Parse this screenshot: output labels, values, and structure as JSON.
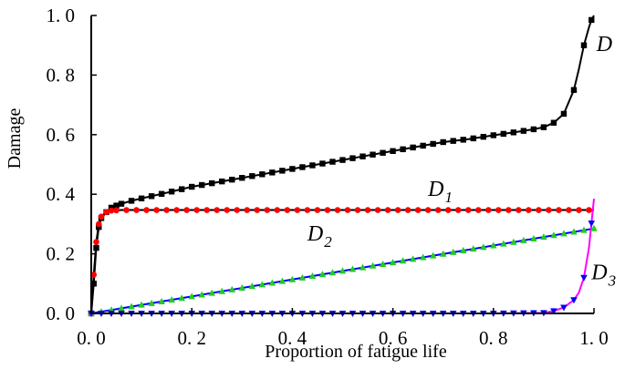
{
  "chart_data": {
    "type": "line",
    "title": "",
    "xlabel": "Proportion of  fatigue life",
    "ylabel": "Damage",
    "xlim": [
      0.0,
      1.0
    ],
    "ylim": [
      0.0,
      1.0
    ],
    "grid": false,
    "legend": "none",
    "x_ticks": [
      {
        "value": 0.0,
        "label": "0. 0"
      },
      {
        "value": 0.2,
        "label": "0. 2"
      },
      {
        "value": 0.4,
        "label": "0. 4"
      },
      {
        "value": 0.6,
        "label": "0. 6"
      },
      {
        "value": 0.8,
        "label": "0. 8"
      },
      {
        "value": 1.0,
        "label": "1. 0"
      }
    ],
    "y_ticks": [
      {
        "value": 0.0,
        "label": "0. 0"
      },
      {
        "value": 0.2,
        "label": "0. 2"
      },
      {
        "value": 0.4,
        "label": "0. 4"
      },
      {
        "value": 0.6,
        "label": "0. 6"
      },
      {
        "value": 0.8,
        "label": "0. 8"
      },
      {
        "value": 1.0,
        "label": "1. 0"
      }
    ],
    "series": [
      {
        "name": "D",
        "label_main": "D",
        "label_sub": "",
        "label_at": [
          1.005,
          0.88
        ],
        "line_color": "#000000",
        "marker_color": "#000000",
        "marker": "square",
        "x": [
          0.0,
          0.005,
          0.01,
          0.015,
          0.02,
          0.03,
          0.04,
          0.05,
          0.06,
          0.08,
          0.1,
          0.15,
          0.2,
          0.25,
          0.3,
          0.35,
          0.4,
          0.45,
          0.5,
          0.55,
          0.6,
          0.65,
          0.7,
          0.75,
          0.8,
          0.85,
          0.88,
          0.9,
          0.92,
          0.94,
          0.96,
          0.97,
          0.98,
          0.99,
          0.995,
          1.0
        ],
        "y": [
          0.0,
          0.1,
          0.22,
          0.29,
          0.32,
          0.34,
          0.355,
          0.362,
          0.368,
          0.378,
          0.386,
          0.405,
          0.425,
          0.44,
          0.455,
          0.47,
          0.485,
          0.5,
          0.515,
          0.53,
          0.545,
          0.56,
          0.575,
          0.585,
          0.598,
          0.61,
          0.618,
          0.625,
          0.64,
          0.67,
          0.75,
          0.82,
          0.9,
          0.96,
          0.985,
          1.0
        ]
      },
      {
        "name": "D1",
        "label_main": "D",
        "label_sub": "1",
        "label_at": [
          0.67,
          0.395
        ],
        "line_color": "#000000",
        "marker_color": "#ff0000",
        "marker": "circle",
        "x": [
          0.0,
          0.005,
          0.01,
          0.015,
          0.02,
          0.03,
          0.04,
          0.05,
          0.06,
          0.08,
          0.1,
          0.2,
          0.3,
          0.4,
          0.5,
          0.6,
          0.7,
          0.8,
          0.9,
          1.0
        ],
        "y": [
          0.0,
          0.13,
          0.24,
          0.3,
          0.325,
          0.34,
          0.345,
          0.346,
          0.347,
          0.347,
          0.347,
          0.347,
          0.347,
          0.347,
          0.347,
          0.347,
          0.347,
          0.347,
          0.347,
          0.347
        ]
      },
      {
        "name": "D2",
        "label_main": "D",
        "label_sub": "2",
        "label_at": [
          0.43,
          0.245
        ],
        "line_color": "#0000ff",
        "marker_color": "#22cc22",
        "marker": "triangle-up",
        "x": [
          0.0,
          1.0
        ],
        "y": [
          0.0,
          0.285
        ]
      },
      {
        "name": "D3",
        "label_main": "D",
        "label_sub": "3",
        "label_at": [
          0.995,
          0.115
        ],
        "line_color": "#ff00ff",
        "marker_color": "#0000ff",
        "marker": "triangle-down",
        "x": [
          0.0,
          0.5,
          0.8,
          0.9,
          0.92,
          0.94,
          0.96,
          0.97,
          0.98,
          0.99,
          1.0
        ],
        "y": [
          0.0,
          0.0,
          0.0,
          0.002,
          0.008,
          0.02,
          0.045,
          0.07,
          0.12,
          0.22,
          0.385
        ]
      }
    ]
  }
}
